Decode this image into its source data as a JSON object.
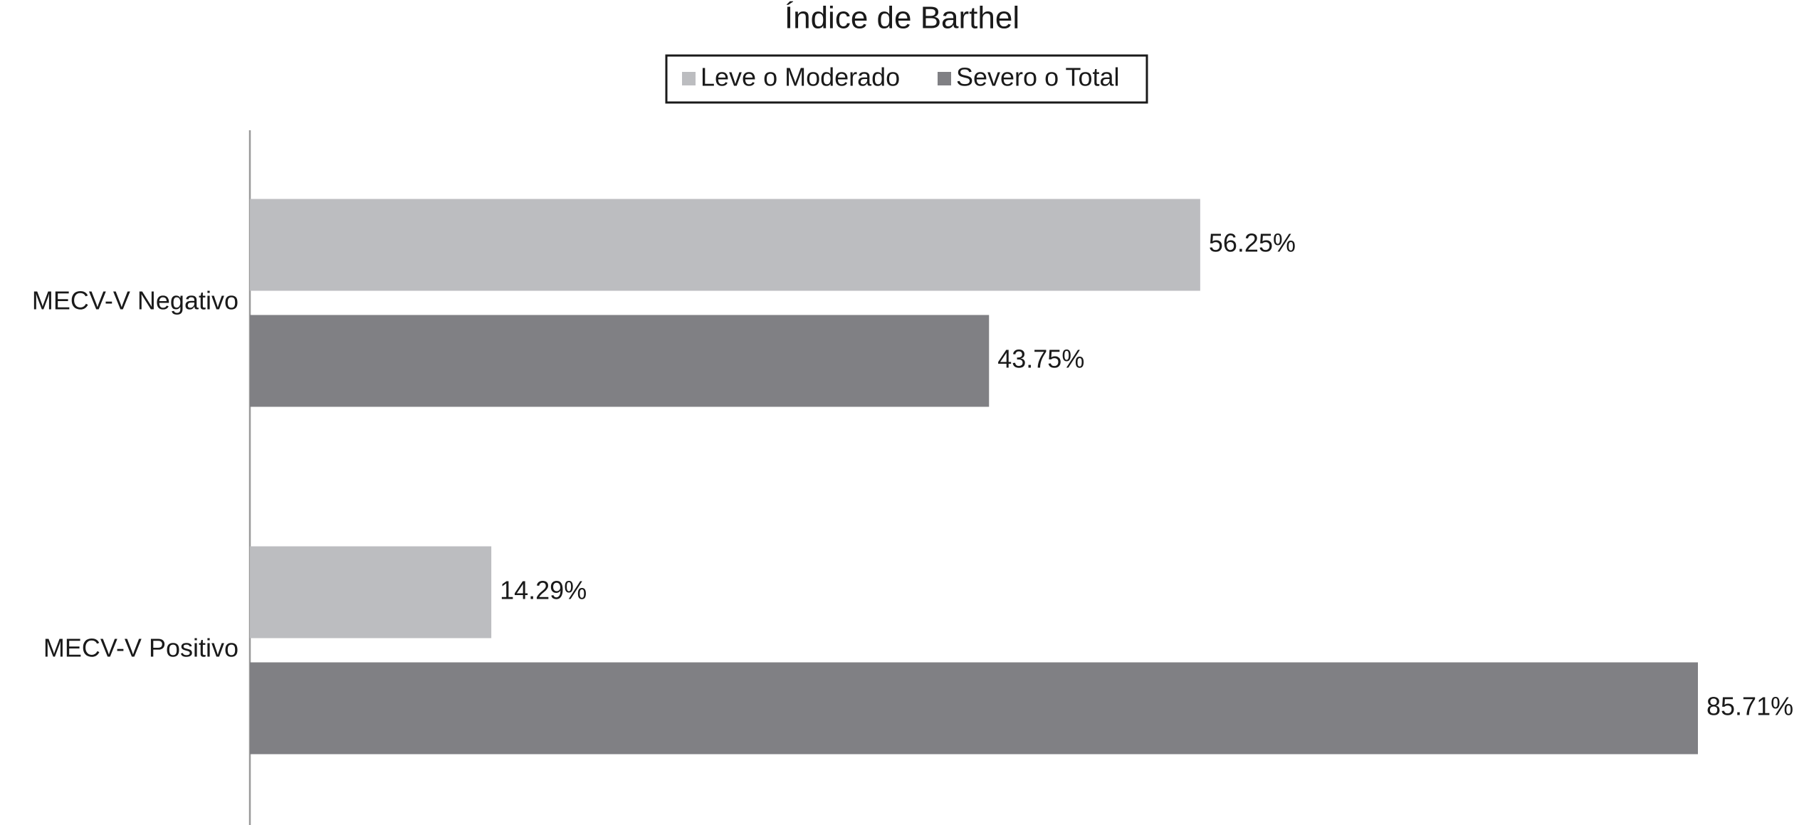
{
  "chart_data": {
    "type": "barh",
    "title": "Índice de Barthel",
    "categories": [
      "MECV-V Negativo",
      "MECV-V Positivo"
    ],
    "series": [
      {
        "name": "Leve o Moderado",
        "color": "#bcbdc0",
        "values": [
          56.25,
          14.29
        ],
        "value_labels": [
          "56.25%",
          "14.29%"
        ]
      },
      {
        "name": "Severo o Total",
        "color": "#808084",
        "values": [
          43.75,
          85.71
        ],
        "value_labels": [
          "43.75%",
          "85.71%"
        ]
      }
    ],
    "legend": "top"
  }
}
